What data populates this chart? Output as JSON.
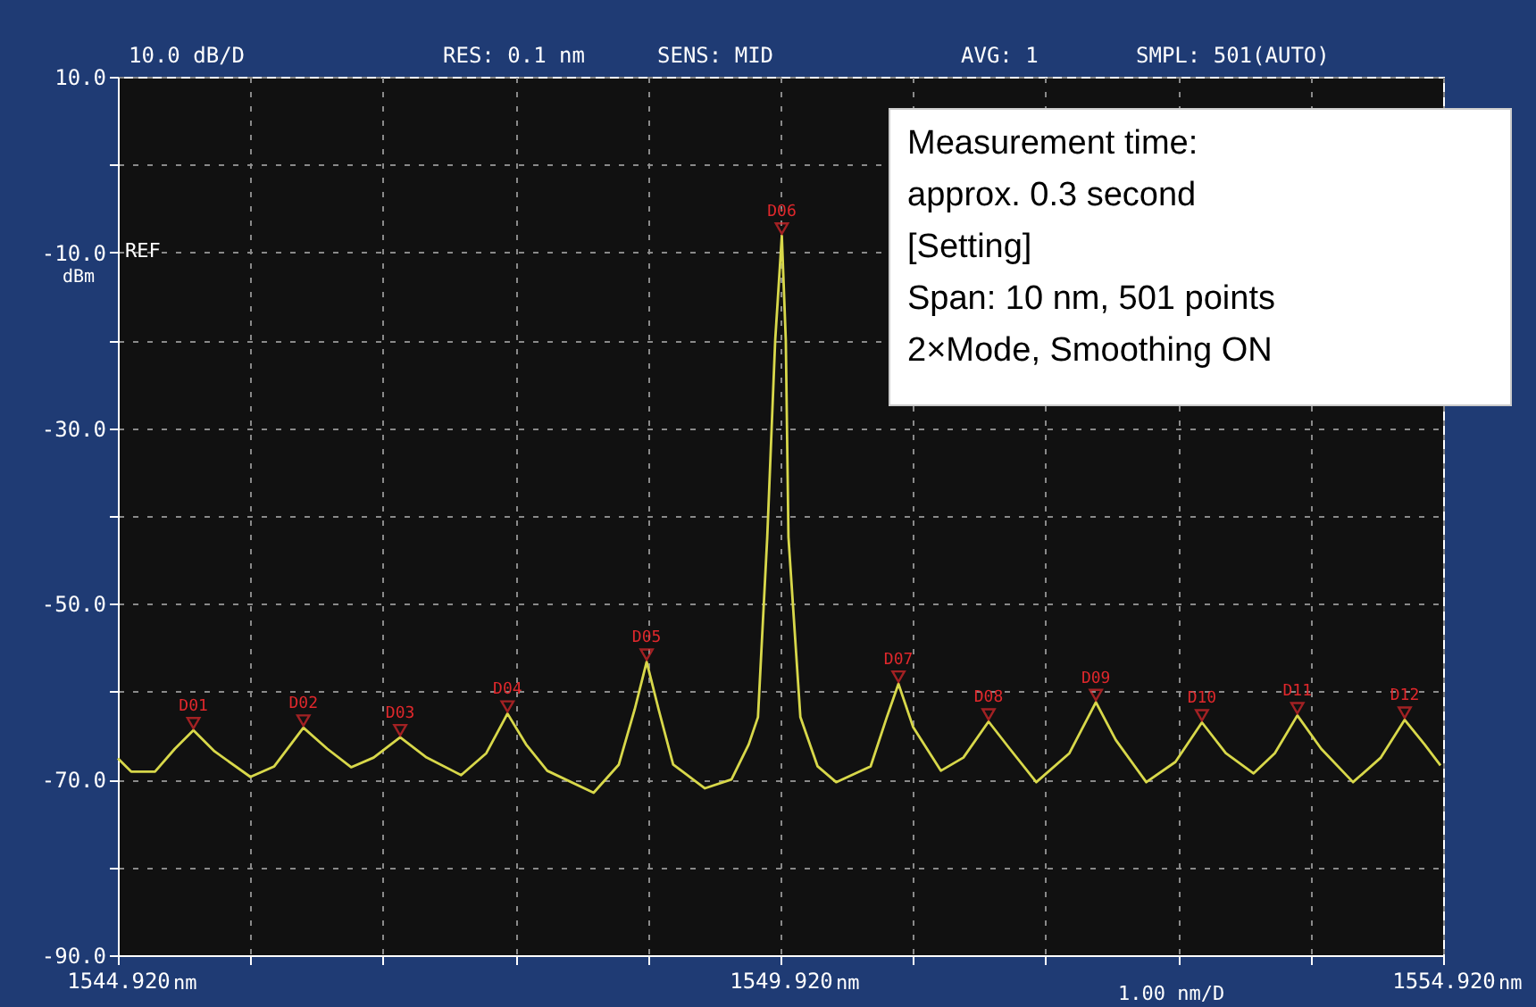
{
  "chart_data": {
    "type": "line",
    "grid": true,
    "marker": "none",
    "line_style": "solid",
    "xlim": [
      1544.92,
      1554.92
    ],
    "ylim": [
      -90,
      10
    ],
    "xticks": [
      {
        "value": 1544.92,
        "label": "1544.920"
      },
      {
        "value": 1545.92,
        "label": null
      },
      {
        "value": 1546.92,
        "label": null
      },
      {
        "value": 1547.92,
        "label": null
      },
      {
        "value": 1548.92,
        "label": null
      },
      {
        "value": 1549.92,
        "label": "1549.920"
      },
      {
        "value": 1550.92,
        "label": null
      },
      {
        "value": 1551.92,
        "label": null
      },
      {
        "value": 1552.92,
        "label": null
      },
      {
        "value": 1553.92,
        "label": null
      },
      {
        "value": 1554.92,
        "label": "1554.920"
      }
    ],
    "yticks": [
      {
        "value": 10,
        "label": "10.0"
      },
      {
        "value": 0,
        "label": null
      },
      {
        "value": -10,
        "label": "-10.0"
      },
      {
        "value": -20,
        "label": null
      },
      {
        "value": -30,
        "label": "-30.0"
      },
      {
        "value": -40,
        "label": null
      },
      {
        "value": -50,
        "label": "-50.0"
      },
      {
        "value": -60,
        "label": null
      },
      {
        "value": -70,
        "label": "-70.0"
      },
      {
        "value": -80,
        "label": null
      },
      {
        "value": -90,
        "label": "-90.0"
      }
    ],
    "series": [
      {
        "color": "#d8d84a",
        "x": [
          1544.92,
          1545.02,
          1545.2,
          1545.35,
          1545.49,
          1545.65,
          1545.92,
          1546.1,
          1546.32,
          1546.5,
          1546.68,
          1546.85,
          1547.05,
          1547.25,
          1547.51,
          1547.7,
          1547.86,
          1548.0,
          1548.16,
          1548.51,
          1548.7,
          1548.82,
          1548.91,
          1549.0,
          1549.11,
          1549.35,
          1549.55,
          1549.68,
          1549.75,
          1549.82,
          1549.88,
          1549.93,
          1549.96,
          1549.98,
          1550.07,
          1550.2,
          1550.34,
          1550.6,
          1550.72,
          1550.81,
          1550.92,
          1551.13,
          1551.3,
          1551.49,
          1551.65,
          1551.85,
          1552.1,
          1552.3,
          1552.45,
          1552.68,
          1552.9,
          1553.1,
          1553.28,
          1553.49,
          1553.65,
          1553.82,
          1554.0,
          1554.24,
          1554.45,
          1554.63,
          1554.78,
          1554.9
        ],
        "values": [
          -67.6,
          -69.1,
          -69.1,
          -66.5,
          -64.4,
          -66.8,
          -69.7,
          -68.5,
          -64.1,
          -66.5,
          -68.6,
          -67.5,
          -65.2,
          -67.5,
          -69.5,
          -67.0,
          -62.5,
          -66.0,
          -69.0,
          -71.5,
          -68.3,
          -62.0,
          -56.6,
          -62.0,
          -68.3,
          -71.0,
          -70.0,
          -66.0,
          -62.9,
          -42.4,
          -20.0,
          -8.1,
          -20.0,
          -42.4,
          -62.9,
          -68.5,
          -70.3,
          -68.5,
          -63.0,
          -59.1,
          -64.0,
          -69.0,
          -67.5,
          -63.4,
          -66.5,
          -70.3,
          -67.0,
          -61.2,
          -65.5,
          -70.3,
          -68.0,
          -63.5,
          -67.0,
          -69.3,
          -67.0,
          -62.7,
          -66.5,
          -70.3,
          -67.5,
          -63.2,
          -66.0,
          -68.4
        ]
      }
    ],
    "annotations": [
      "10.0 dB/D",
      "RES: 0.1 nm",
      "SENS: MID",
      "AVG: 1",
      "SMPL: 501(AUTO)",
      "REF",
      "dBm",
      "1.00 nm/D",
      "nm",
      "nm",
      "nm",
      "Measurement time:\n      approx. 0.3 second\n[Setting]\nSpan: 10 nm, 501 points\n2×Mode, Smoothing ON",
      {
        "text": "D01",
        "x": 1545.49,
        "y": -64.4
      },
      {
        "text": "D02",
        "x": 1546.32,
        "y": -64.1
      },
      {
        "text": "D03",
        "x": 1547.05,
        "y": -65.2
      },
      {
        "text": "D04",
        "x": 1547.86,
        "y": -62.5
      },
      {
        "text": "D05",
        "x": 1548.91,
        "y": -56.6
      },
      {
        "text": "D06",
        "x": 1549.93,
        "y": -8.1
      },
      {
        "text": "D07",
        "x": 1550.81,
        "y": -59.1
      },
      {
        "text": "D08",
        "x": 1551.49,
        "y": -63.4
      },
      {
        "text": "D09",
        "x": 1552.3,
        "y": -61.2
      },
      {
        "text": "D10",
        "x": 1553.1,
        "y": -63.5
      },
      {
        "text": "D11",
        "x": 1553.82,
        "y": -62.7
      },
      {
        "text": "D12",
        "x": 1554.63,
        "y": -63.2
      }
    ]
  }
}
